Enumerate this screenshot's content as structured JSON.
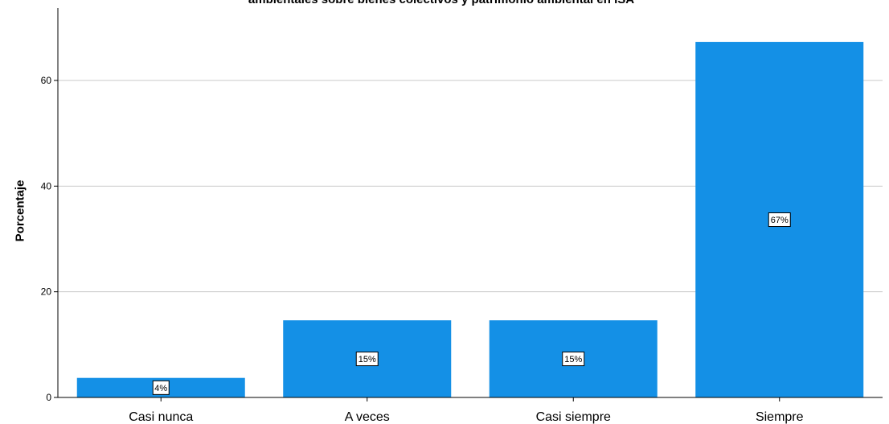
{
  "chart_data": {
    "type": "bar",
    "title": "ambientales sobre bienes colectivos y patrimonio ambiental en ISA",
    "xlabel": "",
    "ylabel": "Porcentaje",
    "categories": [
      "Casi nunca",
      "A veces",
      "Casi siempre",
      "Siempre"
    ],
    "values": [
      3.7,
      14.6,
      14.6,
      67.3
    ],
    "data_labels": [
      "4%",
      "15%",
      "15%",
      "67%"
    ],
    "ylim": [
      0,
      73
    ],
    "yticks": [
      0,
      20,
      40,
      60
    ],
    "grid": true,
    "bar_color": "#1490e6"
  }
}
